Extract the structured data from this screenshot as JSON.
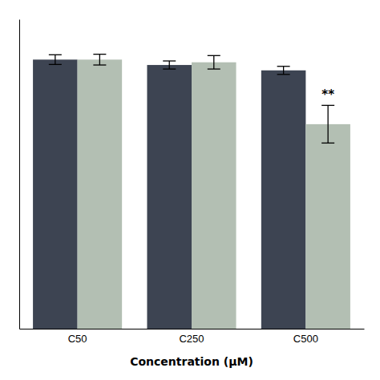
{
  "chart_data": {
    "type": "bar",
    "categories": [
      "C50",
      "C250",
      "C500"
    ],
    "series": [
      {
        "color": "#3d4452",
        "values": [
          100,
          98,
          96
        ],
        "errors": [
          1.8,
          1.5,
          1.5
        ]
      },
      {
        "color": "#b3bfb3",
        "values": [
          100,
          99,
          76
        ],
        "errors": [
          2.0,
          2.5,
          7.0
        ]
      }
    ],
    "xlabel": "Concentration (μM)",
    "annotation": "**",
    "ylim": [
      0,
      115
    ],
    "yticks": [],
    "tick_labels": "x",
    "grid": false
  }
}
